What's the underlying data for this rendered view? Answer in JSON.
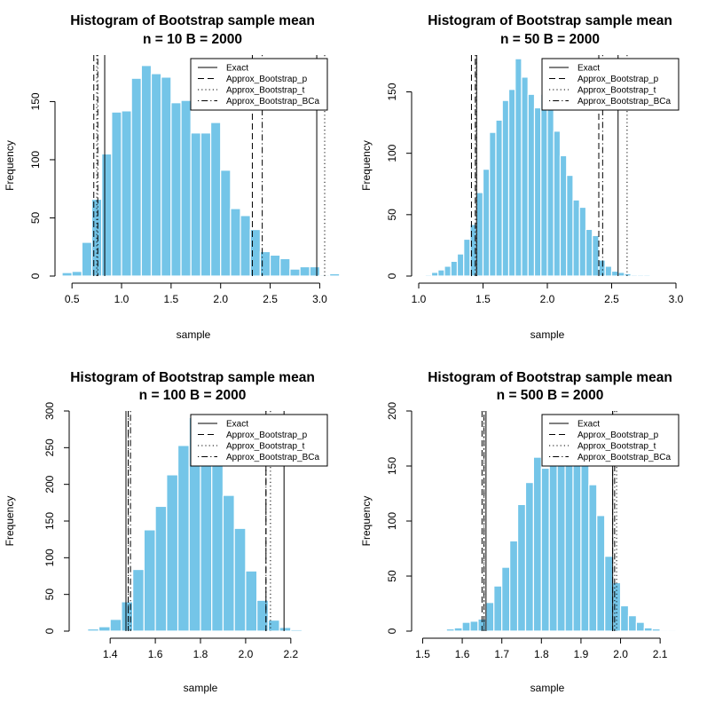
{
  "colors": {
    "bar_fill": "#74c5e8",
    "bar_border": "#ffffff",
    "line": "#000000"
  },
  "chart_data": [
    {
      "type": "bar",
      "title": "Histogram of Bootstrap sample mean",
      "subtitle": "n = 10 B = 2000",
      "xlabel": "sample",
      "ylabel": "Frequency",
      "xlim": [
        0.4,
        3.05
      ],
      "ylim": [
        0,
        190
      ],
      "x_ticks": [
        0.5,
        1.0,
        1.5,
        2.0,
        2.5,
        3.0
      ],
      "x_tick_labels": [
        "0.5",
        "1.0",
        "1.5",
        "2.0",
        "2.5",
        "3.0"
      ],
      "y_ticks": [
        0,
        50,
        100,
        150
      ],
      "y_tick_labels": [
        "0",
        "50",
        "100",
        "150"
      ],
      "bin_start": 0.4,
      "bin_width": 0.1,
      "values": [
        3,
        4,
        29,
        66,
        105,
        141,
        142,
        170,
        181,
        174,
        171,
        149,
        151,
        123,
        123,
        132,
        91,
        58,
        52,
        40,
        21,
        18,
        15,
        6,
        8,
        8,
        1,
        2
      ],
      "vlines": [
        {
          "style": "solid",
          "x": [
            0.83,
            2.97
          ]
        },
        {
          "style": "dashed",
          "x": [
            0.72,
            2.32
          ]
        },
        {
          "style": "dotted",
          "x": [
            0.75,
            3.05
          ]
        },
        {
          "style": "dotdash",
          "x": [
            0.76,
            2.42
          ]
        }
      ],
      "legend": {
        "position": "top-right",
        "entries": [
          {
            "label": "Exact",
            "style": "solid"
          },
          {
            "label": "Approx_Bootstrap_p",
            "style": "dashed"
          },
          {
            "label": "Approx_Bootstrap_t",
            "style": "dotted"
          },
          {
            "label": "Approx_Bootstrap_BCa",
            "style": "dotdash"
          }
        ]
      }
    },
    {
      "type": "bar",
      "title": "Histogram of Bootstrap sample mean",
      "subtitle": "n = 50 B = 2000",
      "xlabel": "sample",
      "ylabel": "Frequency",
      "xlim": [
        1.0,
        3.0
      ],
      "ylim": [
        0,
        180
      ],
      "x_ticks": [
        1.0,
        1.5,
        2.0,
        2.5,
        3.0
      ],
      "x_tick_labels": [
        "1.0",
        "1.5",
        "2.0",
        "2.5",
        "3.0"
      ],
      "y_ticks": [
        0,
        50,
        100,
        150
      ],
      "y_tick_labels": [
        "0",
        "50",
        "100",
        "150"
      ],
      "bin_start": 1.05,
      "bin_width": 0.05,
      "values": [
        1,
        3,
        5,
        8,
        12,
        18,
        30,
        42,
        68,
        87,
        117,
        127,
        143,
        152,
        177,
        162,
        148,
        137,
        148,
        143,
        118,
        98,
        82,
        62,
        56,
        38,
        33,
        13,
        8,
        4,
        3,
        2,
        1,
        1,
        1
      ],
      "vlines": [
        {
          "style": "solid",
          "x": [
            1.45,
            2.55
          ]
        },
        {
          "style": "dashed",
          "x": [
            1.41,
            2.4
          ]
        },
        {
          "style": "dotted",
          "x": [
            1.45,
            2.62
          ]
        },
        {
          "style": "dotdash",
          "x": [
            1.44,
            2.43
          ]
        }
      ],
      "legend": {
        "position": "top-right",
        "entries": [
          {
            "label": "Exact",
            "style": "solid"
          },
          {
            "label": "Approx_Bootstrap_p",
            "style": "dashed"
          },
          {
            "label": "Approx_Bootstrap_t",
            "style": "dotted"
          },
          {
            "label": "Approx_Bootstrap_BCa",
            "style": "dotdash"
          }
        ]
      }
    },
    {
      "type": "bar",
      "title": "Histogram of Bootstrap sample mean",
      "subtitle": "n = 100 B = 2000",
      "xlabel": "sample",
      "ylabel": "Frequency",
      "xlim": [
        1.25,
        2.35
      ],
      "ylim": [
        0,
        300
      ],
      "x_ticks": [
        1.4,
        1.6,
        1.8,
        2.0,
        2.2
      ],
      "x_tick_labels": [
        "1.4",
        "1.6",
        "1.8",
        "2.0",
        "2.2"
      ],
      "y_ticks": [
        0,
        50,
        100,
        150,
        200,
        250,
        300
      ],
      "y_tick_labels": [
        "0",
        "50",
        "100",
        "150",
        "200",
        "250",
        "300"
      ],
      "bin_start": 1.3,
      "bin_width": 0.05,
      "values": [
        3,
        6,
        16,
        40,
        84,
        138,
        170,
        213,
        253,
        291,
        250,
        234,
        185,
        140,
        82,
        42,
        15,
        5,
        2,
        1
      ],
      "vlines": [
        {
          "style": "solid",
          "x": [
            1.47,
            2.17
          ]
        },
        {
          "style": "dashed",
          "x": [
            1.48,
            2.09
          ]
        },
        {
          "style": "dotted",
          "x": [
            1.48,
            2.11
          ]
        },
        {
          "style": "dotdash",
          "x": [
            1.49,
            2.09
          ]
        }
      ],
      "legend": {
        "position": "top-right",
        "entries": [
          {
            "label": "Exact",
            "style": "solid"
          },
          {
            "label": "Approx_Bootstrap_p",
            "style": "dashed"
          },
          {
            "label": "Approx_Bootstrap_t",
            "style": "dotted"
          },
          {
            "label": "Approx_Bootstrap_BCa",
            "style": "dotdash"
          }
        ]
      }
    },
    {
      "type": "bar",
      "title": "Histogram of Bootstrap sample mean",
      "subtitle": "n = 500 B = 2000",
      "xlabel": "sample",
      "ylabel": "Frequency",
      "xlim": [
        1.49,
        2.14
      ],
      "ylim": [
        0,
        200
      ],
      "x_ticks": [
        1.5,
        1.6,
        1.7,
        1.8,
        1.9,
        2.0,
        2.1
      ],
      "x_tick_labels": [
        "1.5",
        "1.6",
        "1.7",
        "1.8",
        "1.9",
        "2.0",
        "2.1"
      ],
      "y_ticks": [
        0,
        50,
        100,
        150,
        200
      ],
      "y_tick_labels": [
        "0",
        "50",
        "100",
        "150",
        "200"
      ],
      "bin_start": 1.52,
      "bin_width": 0.02,
      "values": [
        1,
        1,
        2,
        3,
        8,
        9,
        11,
        26,
        41,
        58,
        82,
        115,
        135,
        158,
        148,
        161,
        183,
        176,
        172,
        152,
        133,
        105,
        68,
        44,
        23,
        14,
        8,
        3,
        2,
        1,
        1
      ],
      "vlines": [
        {
          "style": "solid",
          "x": [
            1.66,
            1.98
          ]
        },
        {
          "style": "dashed",
          "x": [
            1.65,
            1.98
          ]
        },
        {
          "style": "dotted",
          "x": [
            1.655,
            1.99
          ]
        },
        {
          "style": "dotdash",
          "x": [
            1.655,
            1.985
          ]
        }
      ],
      "legend": {
        "position": "top-right",
        "entries": [
          {
            "label": "Exact",
            "style": "solid"
          },
          {
            "label": "Approx_Bootstrap_p",
            "style": "dashed"
          },
          {
            "label": "Approx_Bootstrap_t",
            "style": "dotted"
          },
          {
            "label": "Approx_Bootstrap_BCa",
            "style": "dotdash"
          }
        ]
      }
    }
  ]
}
